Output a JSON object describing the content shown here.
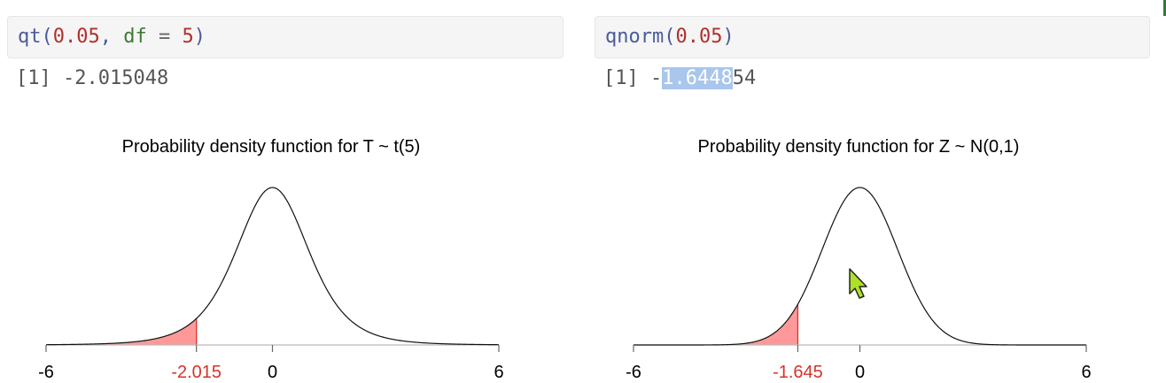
{
  "cells": [
    {
      "code": {
        "fn": "qt",
        "open": "(",
        "arg1": "0.05",
        "comma": ", ",
        "argname": "df",
        "eq": " = ",
        "arg2": "5",
        "close": ")"
      },
      "output": {
        "prefix": "[1] ",
        "value": "-2.015048"
      }
    },
    {
      "code": {
        "fn": "qnorm",
        "open": "(",
        "arg1": "0.05",
        "close": ")"
      },
      "output": {
        "prefix": "[1] ",
        "minus": "-",
        "highlighted": "1.6448",
        "rest": "54"
      }
    }
  ],
  "chart_data": [
    {
      "type": "area",
      "title": "Probability density function for T ~ t(5)",
      "distribution": "t",
      "df": 5,
      "xlim": [
        -6,
        6
      ],
      "x_ticks": [
        -6,
        0,
        6
      ],
      "critical_value": -2.015,
      "critical_label": "-2.015",
      "shaded_region": "lower tail (x < -2.015)",
      "shade_color": "#ff9999",
      "critical_color": "#d6322a",
      "peak_density": 0.3796
    },
    {
      "type": "area",
      "title": "Probability density function for Z ~ N(0,1)",
      "distribution": "normal",
      "mean": 0,
      "sd": 1,
      "xlim": [
        -6,
        6
      ],
      "x_ticks": [
        -6,
        0,
        6
      ],
      "critical_value": -1.645,
      "critical_label": "-1.645",
      "shaded_region": "lower tail (x < -1.645)",
      "shade_color": "#ff9999",
      "critical_color": "#d6322a",
      "peak_density": 0.3989
    }
  ]
}
